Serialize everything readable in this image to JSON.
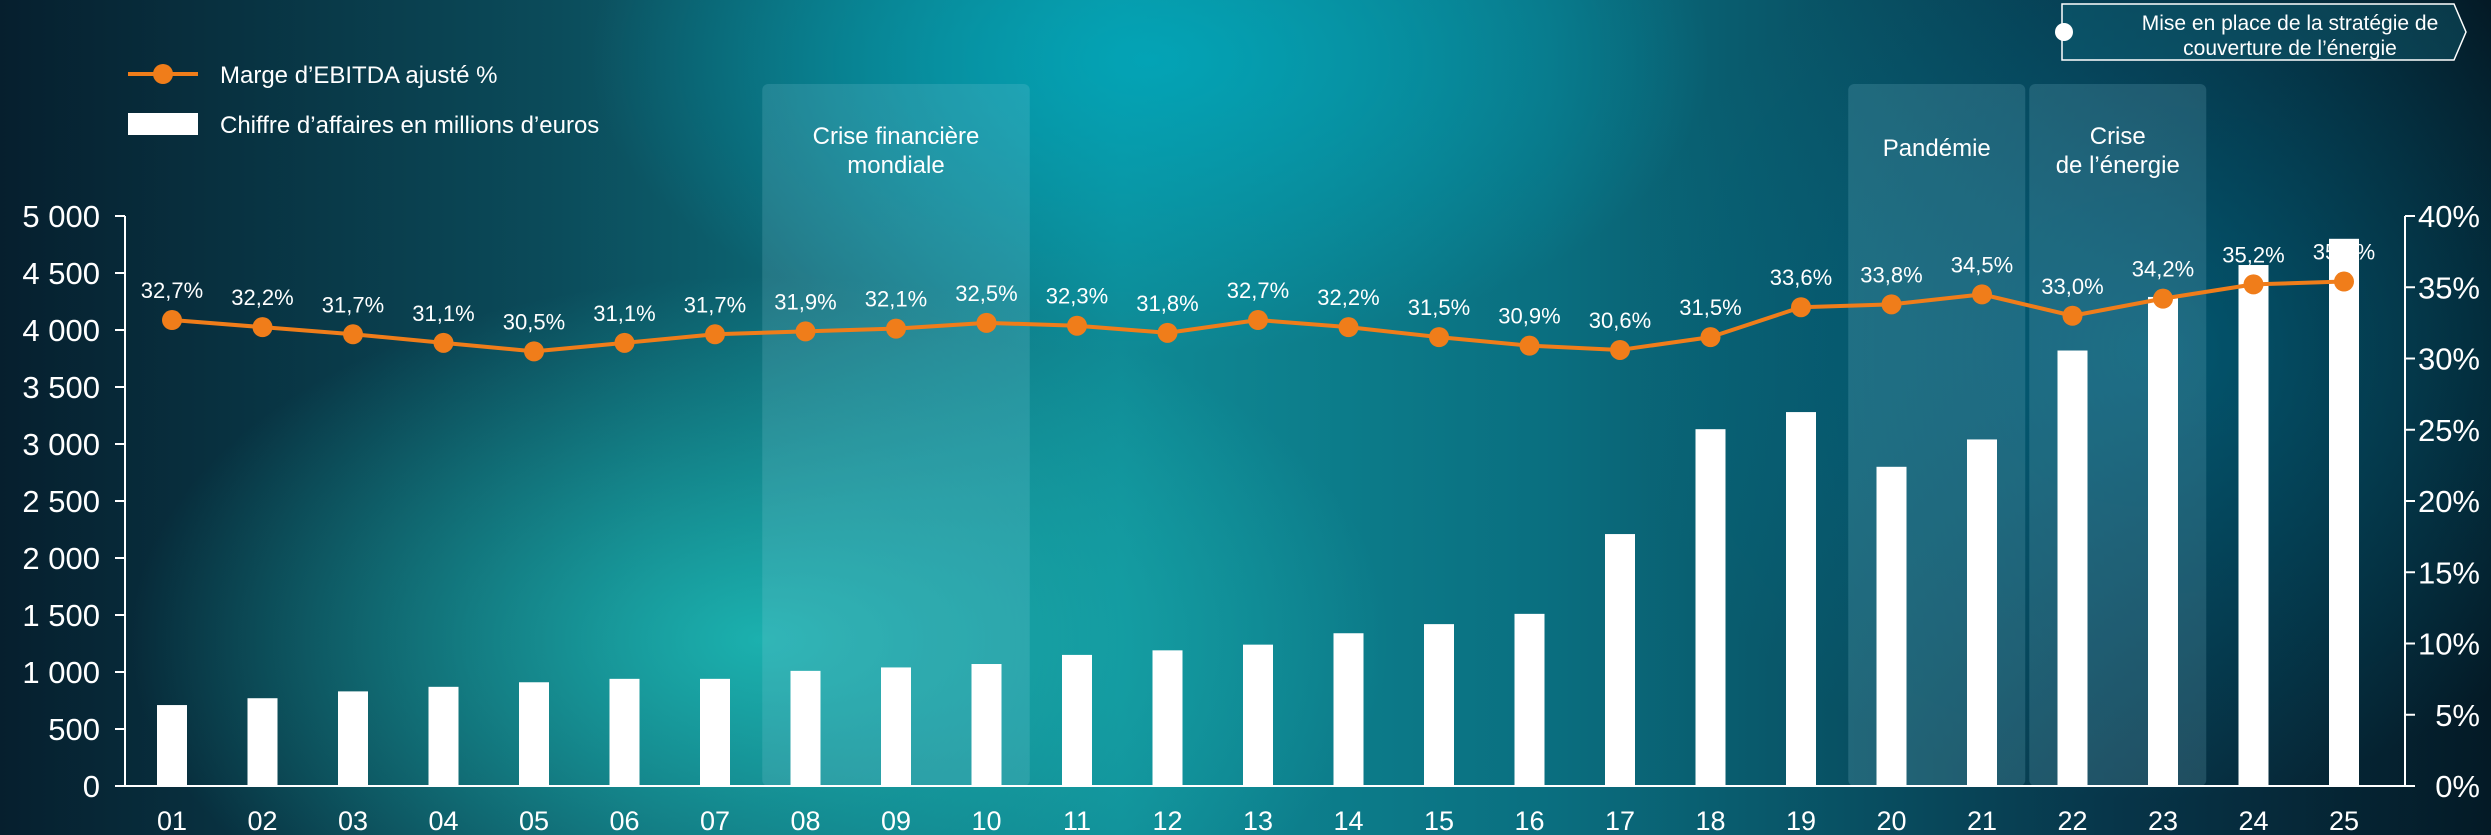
{
  "legend": {
    "line_label": "Marge d’EBITDA ajusté %",
    "bar_label": "Chiffre d’affaires en millions d’euros"
  },
  "callout": {
    "text_line1": "Mise en place de la stratégie de",
    "text_line2": "couverture de l’énergie"
  },
  "periods": [
    {
      "label_lines": [
        "Crise financière",
        "mondiale"
      ],
      "from": "08",
      "to": "10"
    },
    {
      "label_lines": [
        "Pandémie"
      ],
      "from": "20",
      "to": "21"
    },
    {
      "label_lines": [
        "Crise",
        "de l’énergie"
      ],
      "from": "22",
      "to": "23"
    }
  ],
  "colors": {
    "bar": "#ffffff",
    "line": "#f07d1a",
    "marker": "#f07d1a",
    "band": "rgba(150,210,225,0.18)"
  },
  "chart_data": {
    "type": "bar",
    "categories": [
      "01",
      "02",
      "03",
      "04",
      "05",
      "06",
      "07",
      "08",
      "09",
      "10",
      "11",
      "12",
      "13",
      "14",
      "15",
      "16",
      "17",
      "18",
      "19",
      "20",
      "21",
      "22",
      "23",
      "24",
      "25"
    ],
    "series": [
      {
        "name": "Chiffre d’affaires en millions d’euros",
        "type": "bar",
        "axis": "left",
        "values": [
          710,
          770,
          830,
          870,
          910,
          940,
          940,
          1010,
          1040,
          1070,
          1150,
          1190,
          1240,
          1340,
          1420,
          1510,
          2210,
          3130,
          3280,
          2800,
          3040,
          3820,
          4290,
          4570,
          4800
        ]
      },
      {
        "name": "Marge d’EBITDA ajusté %",
        "type": "line",
        "axis": "right",
        "values": [
          32.7,
          32.2,
          31.7,
          31.1,
          30.5,
          31.1,
          31.7,
          31.9,
          32.1,
          32.5,
          32.3,
          31.8,
          32.7,
          32.2,
          31.5,
          30.9,
          30.6,
          31.5,
          33.6,
          33.8,
          34.5,
          33.0,
          34.2,
          35.2,
          35.4
        ],
        "labels": [
          "32,7%",
          "32,2%",
          "31,7%",
          "31,1%",
          "30,5%",
          "31,1%",
          "31,7%",
          "31,9%",
          "32,1%",
          "32,5%",
          "32,3%",
          "31,8%",
          "32,7%",
          "32,2%",
          "31,5%",
          "30,9%",
          "30,6%",
          "31,5%",
          "33,6%",
          "33,8%",
          "34,5%",
          "33,0%",
          "34,2%",
          "35,2%",
          "35.4%"
        ]
      }
    ],
    "y_left": {
      "ylim": [
        0,
        5000
      ],
      "ticks": [
        0,
        500,
        1000,
        1500,
        2000,
        2500,
        3000,
        3500,
        4000,
        4500,
        5000
      ],
      "tick_labels": [
        "0",
        "500",
        "1 000",
        "1 500",
        "2 000",
        "2 500",
        "3 000",
        "3 500",
        "4 000",
        "4 500",
        "5 000"
      ]
    },
    "y_right": {
      "ylim": [
        0,
        40
      ],
      "ticks": [
        0,
        5,
        10,
        15,
        20,
        25,
        30,
        35,
        40
      ],
      "tick_labels": [
        "0%",
        "5%",
        "10%",
        "15%",
        "20%",
        "25%",
        "30%",
        "35%",
        "40%"
      ]
    },
    "grid": false,
    "legend_position": "top-left"
  }
}
